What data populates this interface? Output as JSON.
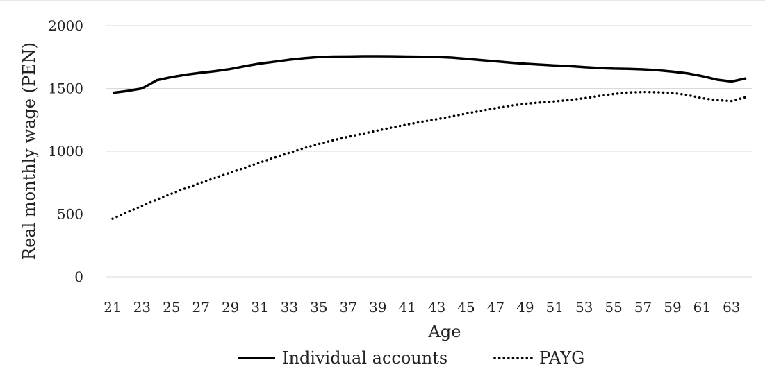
{
  "chart_data": {
    "type": "line",
    "title": "",
    "xlabel": "Age",
    "ylabel": "Real monthly wage (PEN)",
    "x": [
      21,
      22,
      23,
      24,
      25,
      26,
      27,
      28,
      29,
      30,
      31,
      32,
      33,
      34,
      35,
      36,
      37,
      38,
      39,
      40,
      41,
      42,
      43,
      44,
      45,
      46,
      47,
      48,
      49,
      50,
      51,
      52,
      53,
      54,
      55,
      56,
      57,
      58,
      59,
      60,
      61,
      62,
      63,
      64
    ],
    "x_tick_labels": [
      "21",
      "23",
      "25",
      "27",
      "29",
      "31",
      "33",
      "35",
      "37",
      "39",
      "41",
      "43",
      "45",
      "47",
      "49",
      "51",
      "53",
      "55",
      "57",
      "59",
      "61",
      "63"
    ],
    "ylim": [
      0,
      2000
    ],
    "y_ticks": [
      0,
      500,
      1000,
      1500,
      2000
    ],
    "y_tick_labels": [
      "0",
      "500",
      "1000",
      "1500",
      "2000"
    ],
    "grid": "horizontal",
    "legend": "bottom",
    "series": [
      {
        "name": "Individual accounts",
        "style": "solid",
        "color": "#000000",
        "values": [
          1465,
          1480,
          1500,
          1565,
          1590,
          1610,
          1625,
          1638,
          1655,
          1678,
          1698,
          1713,
          1729,
          1741,
          1751,
          1754,
          1755,
          1757,
          1757,
          1756,
          1754,
          1753,
          1751,
          1746,
          1736,
          1726,
          1716,
          1706,
          1697,
          1690,
          1683,
          1678,
          1670,
          1663,
          1658,
          1656,
          1652,
          1645,
          1634,
          1620,
          1598,
          1570,
          1555,
          1580
        ]
      },
      {
        "name": "PAYG",
        "style": "dotted",
        "color": "#000000",
        "values": [
          463,
          515,
          565,
          615,
          662,
          707,
          749,
          790,
          830,
          870,
          910,
          950,
          988,
          1025,
          1058,
          1088,
          1115,
          1140,
          1165,
          1190,
          1213,
          1235,
          1255,
          1277,
          1300,
          1322,
          1343,
          1362,
          1378,
          1388,
          1397,
          1408,
          1422,
          1440,
          1456,
          1468,
          1472,
          1470,
          1464,
          1448,
          1423,
          1407,
          1400,
          1432
        ]
      }
    ]
  }
}
